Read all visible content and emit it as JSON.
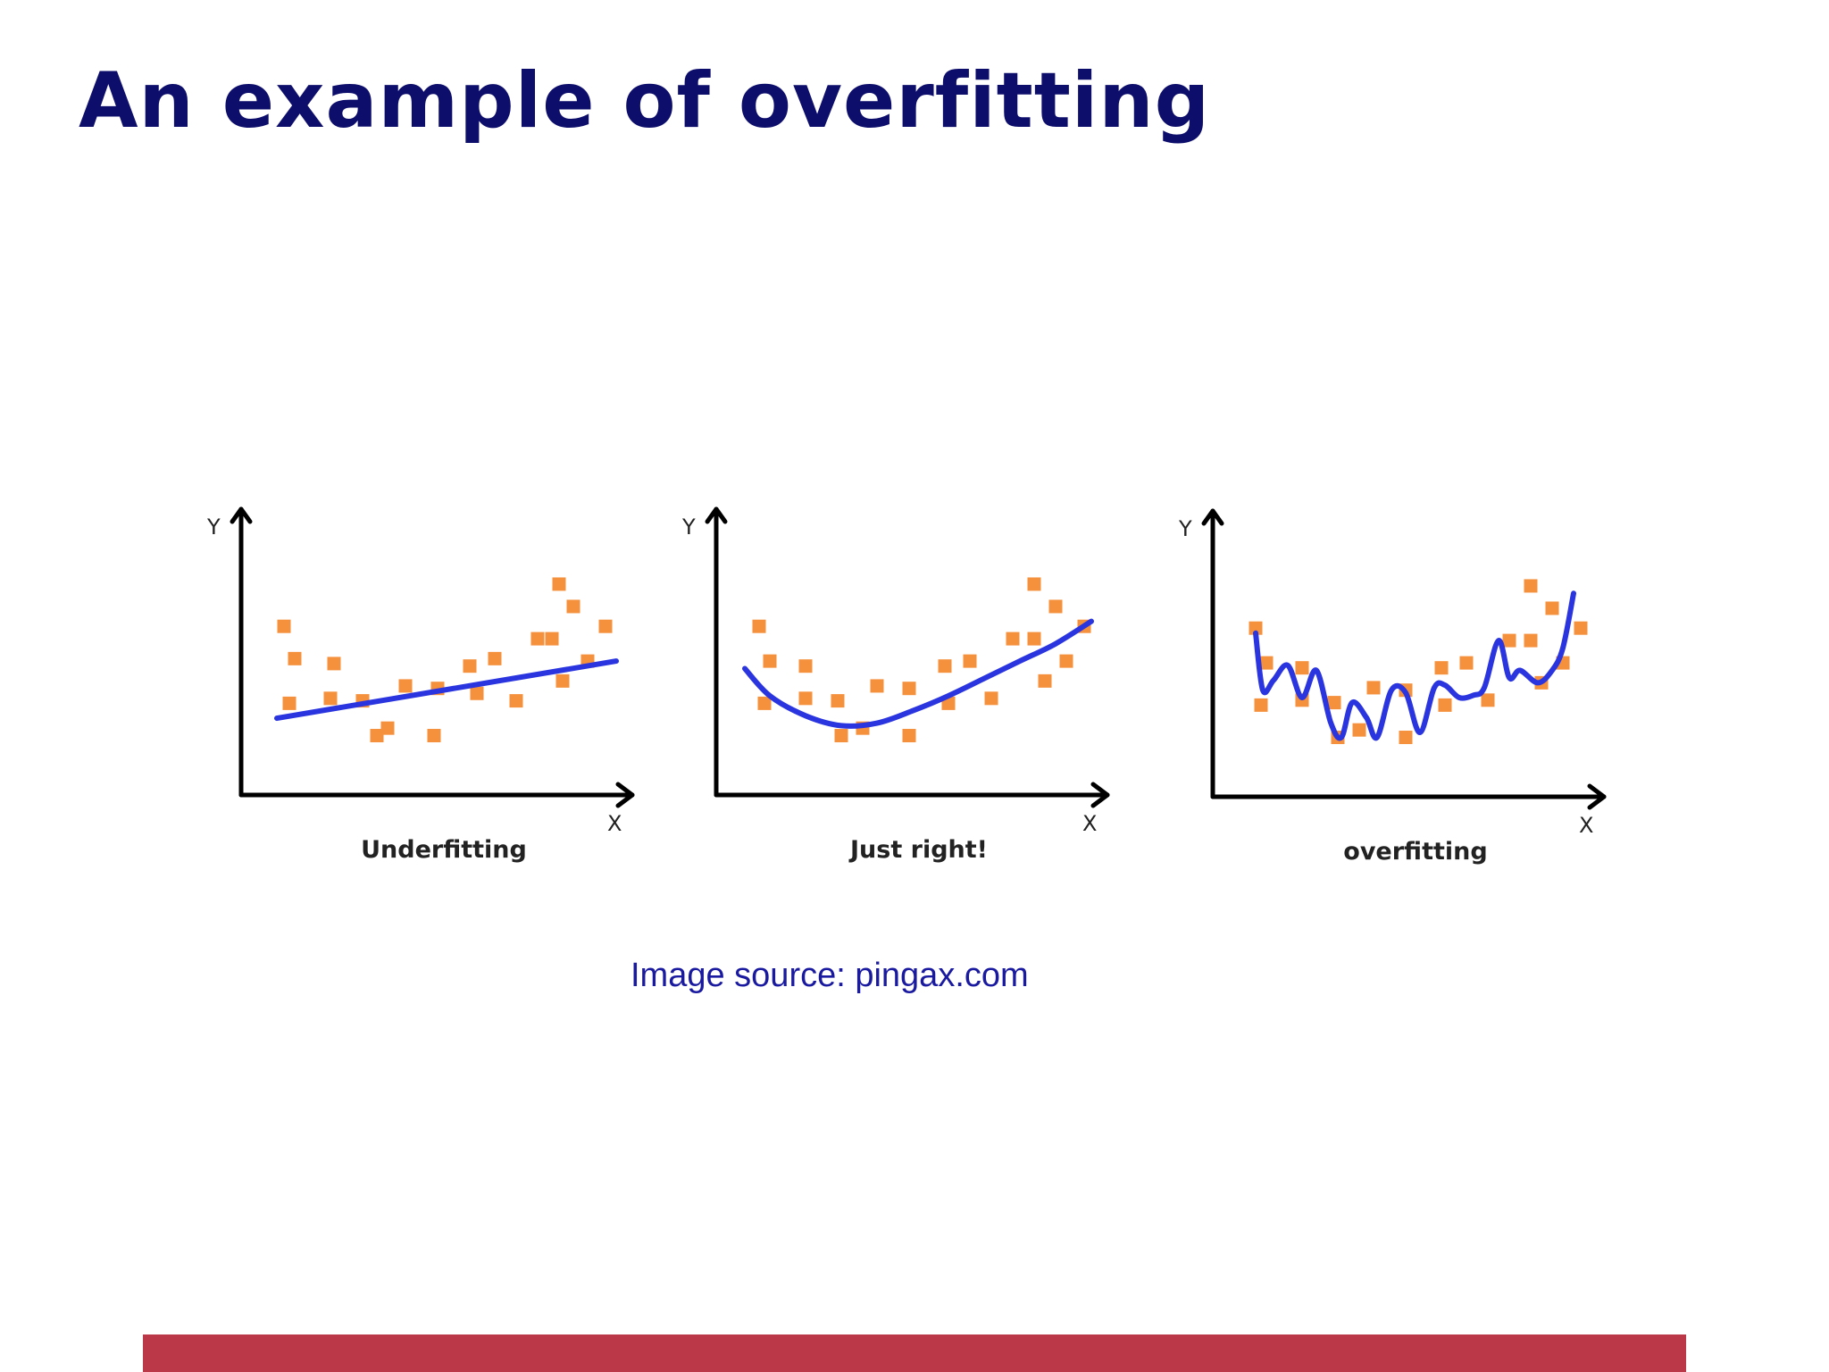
{
  "slide": {
    "title": "An example of overfitting",
    "source_note": "Image source: pingax.com"
  },
  "colors": {
    "title": "#0d0d6b",
    "source_note": "#1a1aa0",
    "footer_bar": "#bb3848",
    "point": "#f5903c",
    "curve": "#2a35e0"
  },
  "chart_data": [
    {
      "type": "scatter",
      "title": "Underfitting",
      "xlabel": "X",
      "ylabel": "Y",
      "xlim": [
        0,
        10
      ],
      "ylim": [
        0,
        10
      ],
      "grid": false,
      "points": {
        "x": [
          0.7,
          1.0,
          0.85,
          2.1,
          2.0,
          2.9,
          3.3,
          3.6,
          4.1,
          5.0,
          4.9,
          5.9,
          6.1,
          6.6,
          7.2,
          7.8,
          8.2,
          8.4,
          8.8,
          8.5,
          9.2,
          9.7
        ],
        "y": [
          6.0,
          4.7,
          2.9,
          4.5,
          3.1,
          3.0,
          1.6,
          1.9,
          3.6,
          3.5,
          1.6,
          4.4,
          3.3,
          4.7,
          3.0,
          5.5,
          5.5,
          7.7,
          6.8,
          3.8,
          4.6,
          6.0
        ]
      },
      "fit": {
        "label": "linear fit",
        "x": [
          0.5,
          10.0
        ],
        "y": [
          2.3,
          4.6
        ]
      }
    },
    {
      "type": "scatter",
      "title": "Just right!",
      "xlabel": "X",
      "ylabel": "Y",
      "xlim": [
        0,
        10
      ],
      "ylim": [
        0,
        10
      ],
      "grid": false,
      "points": {
        "x": [
          0.7,
          1.0,
          0.85,
          2.0,
          2.0,
          2.9,
          3.0,
          3.6,
          4.0,
          4.9,
          4.9,
          5.9,
          6.0,
          6.6,
          7.2,
          7.8,
          8.4,
          8.4,
          9.0,
          8.7,
          9.3,
          9.8
        ],
        "y": [
          6.0,
          4.6,
          2.9,
          4.4,
          3.1,
          3.0,
          1.6,
          1.9,
          3.6,
          3.5,
          1.6,
          4.4,
          2.9,
          4.6,
          3.1,
          5.5,
          5.5,
          7.7,
          6.8,
          3.8,
          4.6,
          6.0
        ]
      },
      "fit": {
        "label": "quadratic fit",
        "x": [
          0.3,
          1.0,
          2.0,
          3.0,
          4.0,
          5.0,
          6.0,
          7.0,
          8.0,
          9.0,
          10.0
        ],
        "y": [
          4.3,
          3.2,
          2.4,
          2.0,
          2.1,
          2.6,
          3.2,
          3.9,
          4.6,
          5.3,
          6.2
        ]
      }
    },
    {
      "type": "scatter",
      "title": "overfitting",
      "xlabel": "X",
      "ylabel": "Y",
      "xlim": [
        0,
        10
      ],
      "ylim": [
        0,
        10
      ],
      "grid": false,
      "points": {
        "x": [
          0.7,
          1.0,
          0.85,
          2.0,
          2.0,
          2.9,
          3.0,
          3.6,
          4.0,
          4.9,
          4.9,
          5.9,
          6.0,
          6.6,
          7.2,
          7.8,
          8.4,
          8.4,
          9.0,
          8.7,
          9.3,
          9.8
        ],
        "y": [
          6.0,
          4.6,
          2.9,
          4.4,
          3.1,
          3.0,
          1.6,
          1.9,
          3.6,
          3.5,
          1.6,
          4.4,
          2.9,
          4.6,
          3.1,
          5.5,
          5.5,
          7.7,
          6.8,
          3.8,
          4.6,
          6.0
        ]
      },
      "fit": {
        "label": "high-order fit",
        "x": [
          0.7,
          0.9,
          1.2,
          1.6,
          2.0,
          2.4,
          2.8,
          3.1,
          3.4,
          3.8,
          4.1,
          4.5,
          4.9,
          5.3,
          5.7,
          6.0,
          6.4,
          6.8,
          7.1,
          7.5,
          7.8,
          8.1,
          8.6,
          9.0,
          9.3,
          9.6
        ],
        "y": [
          5.8,
          3.5,
          3.9,
          4.5,
          3.2,
          4.3,
          2.2,
          1.6,
          3.0,
          2.4,
          1.6,
          3.5,
          3.4,
          1.8,
          3.6,
          3.7,
          3.2,
          3.3,
          3.6,
          5.5,
          4.0,
          4.3,
          3.8,
          4.3,
          5.2,
          7.4
        ]
      }
    }
  ]
}
